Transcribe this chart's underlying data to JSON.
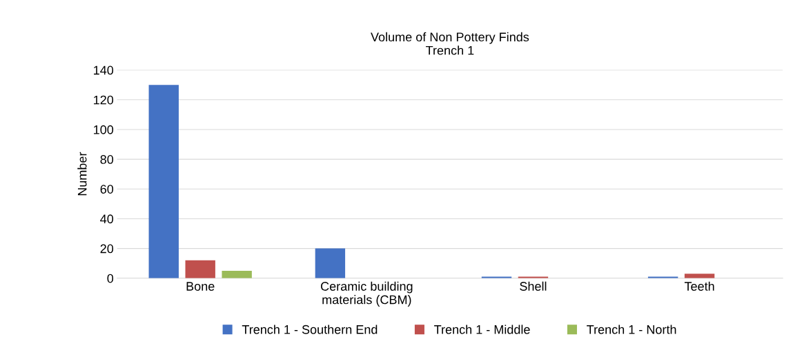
{
  "chart_data": {
    "type": "bar",
    "title": "Volume of Non Pottery Finds\nTrench 1",
    "ylabel": "Number",
    "categories": [
      "Bone",
      "Ceramic building\nmaterials (CBM)",
      "Shell",
      "Teeth"
    ],
    "series": [
      {
        "name": "Trench 1 - Southern End",
        "color": "#4472c4",
        "values": [
          130,
          20,
          1,
          1
        ]
      },
      {
        "name": "Trench 1 - Middle",
        "color": "#c0504d",
        "values": [
          12,
          0,
          1,
          3
        ]
      },
      {
        "name": "Trench 1 - North",
        "color": "#9bbb59",
        "values": [
          5,
          0,
          0,
          0
        ]
      }
    ],
    "ylim": [
      0,
      140
    ],
    "yticks": [
      0,
      20,
      40,
      60,
      80,
      100,
      120,
      140
    ],
    "grid": "y",
    "legend": "bottom"
  }
}
